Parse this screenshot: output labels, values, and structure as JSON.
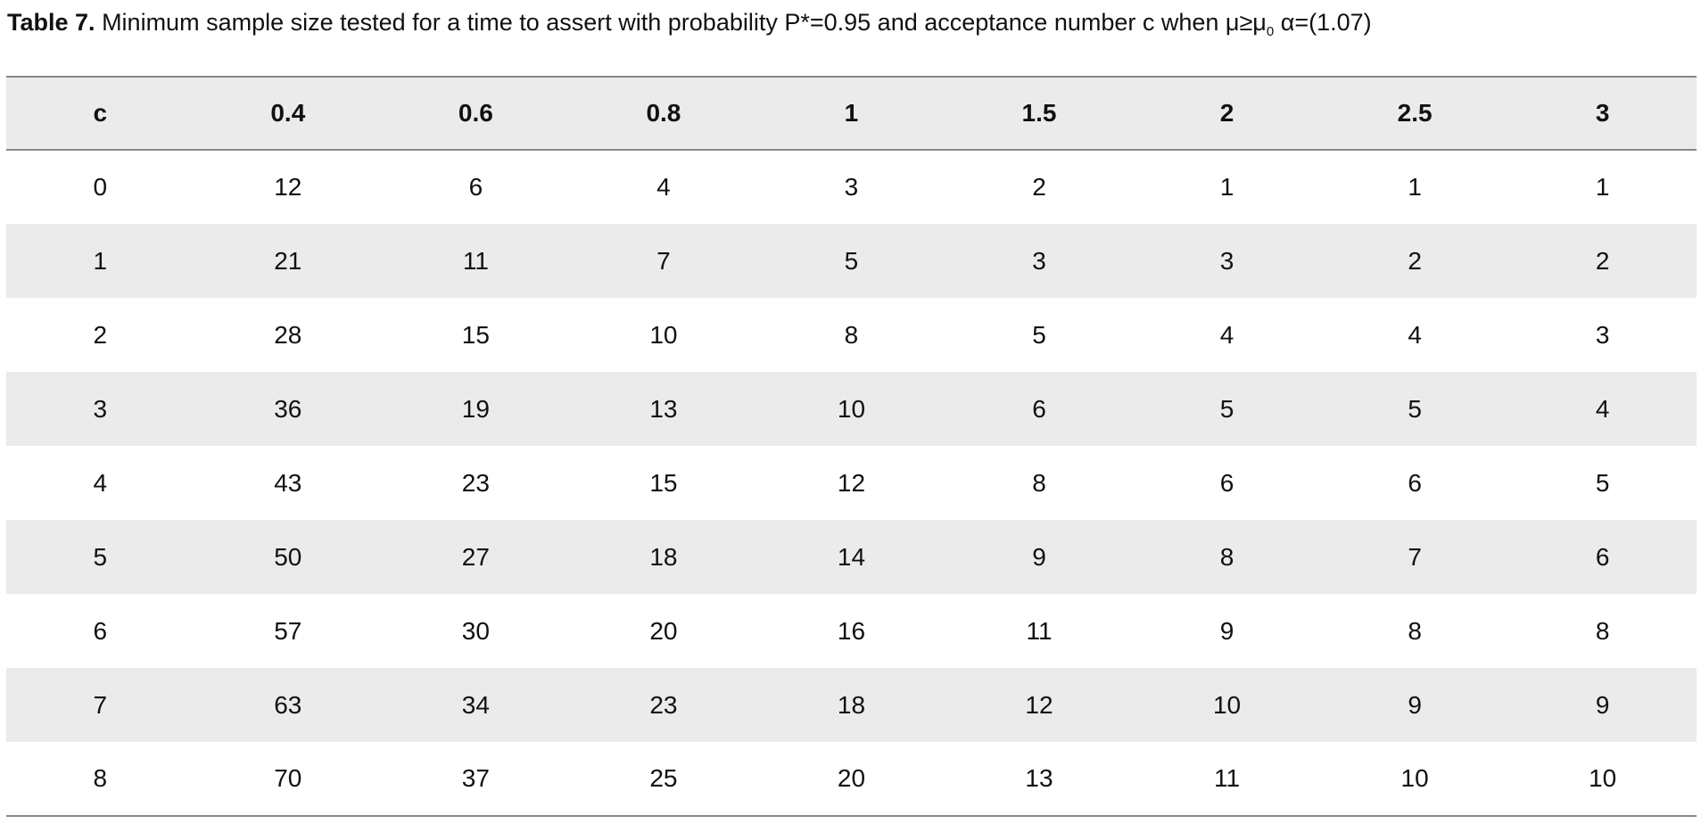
{
  "caption": {
    "label": "Table 7.",
    "text": "Minimum sample size tested for a time to assert with probability P*=0.95 and acceptance number c when μ≥μ",
    "subscript": "0",
    "text_after": "α=(1.07)"
  },
  "table": {
    "header": [
      "c",
      "0.4",
      "0.6",
      "0.8",
      "1",
      "1.5",
      "2",
      "2.5",
      "3"
    ],
    "rows": [
      [
        0,
        12,
        6,
        4,
        3,
        2,
        1,
        1,
        1
      ],
      [
        1,
        21,
        11,
        7,
        5,
        3,
        3,
        2,
        2
      ],
      [
        2,
        28,
        15,
        10,
        8,
        5,
        4,
        4,
        3
      ],
      [
        3,
        36,
        19,
        13,
        10,
        6,
        5,
        5,
        4
      ],
      [
        4,
        43,
        23,
        15,
        12,
        8,
        6,
        6,
        5
      ],
      [
        5,
        50,
        27,
        18,
        14,
        9,
        8,
        7,
        6
      ],
      [
        6,
        57,
        30,
        20,
        16,
        11,
        9,
        8,
        8
      ],
      [
        7,
        63,
        34,
        23,
        18,
        12,
        10,
        9,
        9
      ],
      [
        8,
        70,
        37,
        25,
        20,
        13,
        11,
        10,
        10
      ]
    ]
  }
}
